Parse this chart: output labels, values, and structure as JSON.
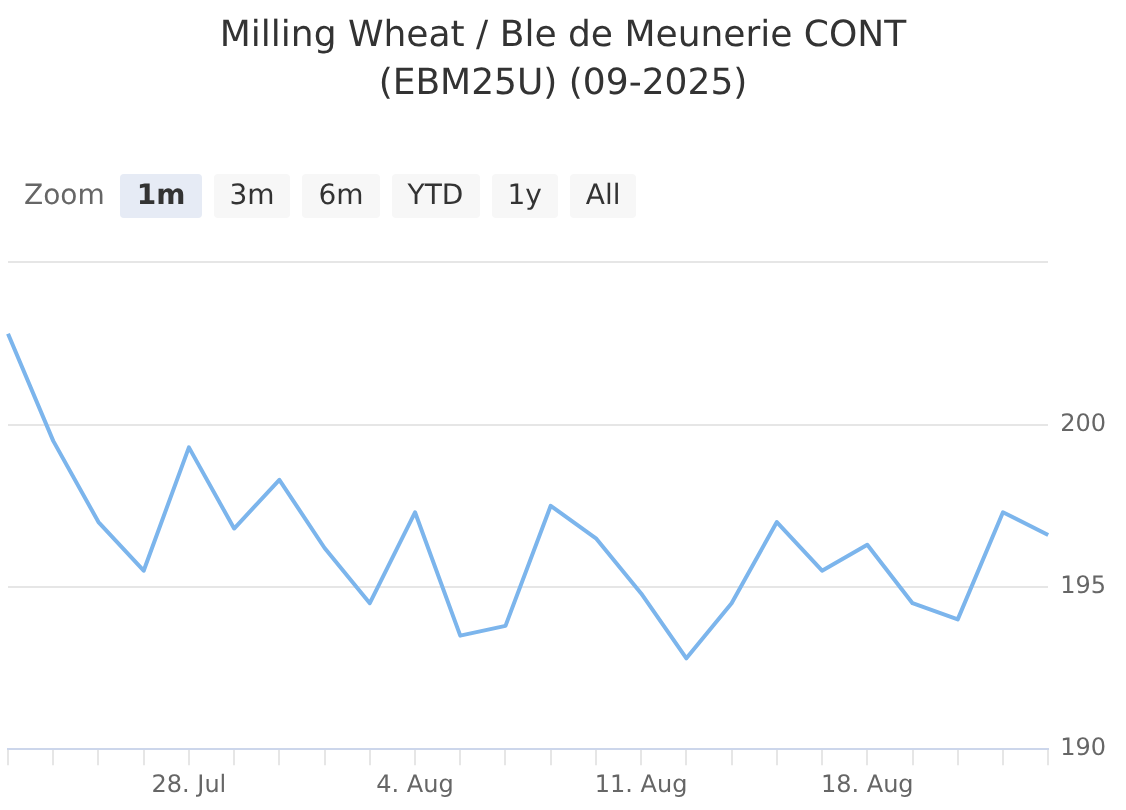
{
  "chart_data": {
    "type": "line",
    "title": "Milling Wheat / Ble de Meunerie CONT (EBM25U) (09-2025)",
    "annotations": [
      "Zoom",
      "1m",
      "3m",
      "6m",
      "YTD",
      "1y",
      "All"
    ],
    "categories": [
      null,
      null,
      null,
      null,
      "28. Jul",
      null,
      null,
      null,
      null,
      "4. Aug",
      null,
      null,
      null,
      null,
      "11. Aug",
      null,
      null,
      null,
      null,
      "18. Aug",
      null,
      null,
      null,
      null
    ],
    "series": [
      {
        "color": "#7cb5ec",
        "values": [
          202.8,
          199.5,
          197.0,
          195.5,
          199.3,
          196.8,
          198.3,
          196.2,
          194.5,
          197.3,
          193.5,
          193.8,
          197.5,
          196.5,
          194.8,
          192.8,
          194.5,
          197.0,
          195.5,
          196.3,
          194.5,
          194.0,
          197.3,
          196.6
        ]
      }
    ],
    "ylim": [
      190,
      205
    ],
    "yticks": [
      190,
      195,
      200,
      {
        "value": 205,
        "label": null
      }
    ],
    "grid": "y",
    "legend": false,
    "marker": "none",
    "line_style": "solid"
  }
}
